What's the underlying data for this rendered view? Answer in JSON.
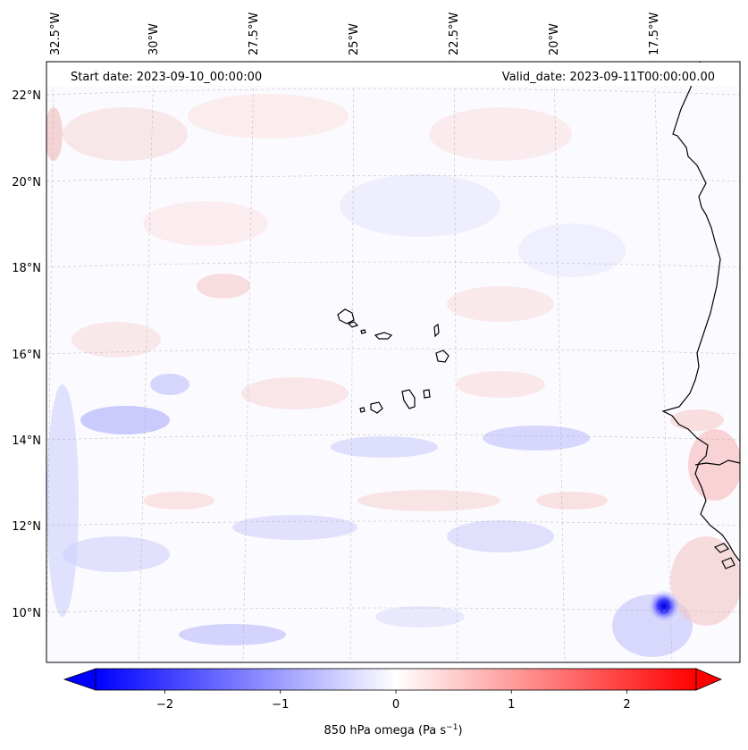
{
  "map": {
    "start_label": "Start date: 2023-09-10_00:00:00",
    "valid_label": "Valid_date: 2023-09-11T00:00:00.00",
    "lon_labels": [
      "32.5°W",
      "30°W",
      "27.5°W",
      "25°W",
      "22.5°W",
      "20°W",
      "17.5°W"
    ],
    "lat_labels": [
      "22°N",
      "20°N",
      "18°N",
      "16°N",
      "14°N",
      "12°N",
      "10°N"
    ],
    "field": "850 hPa omega",
    "colors": {
      "negative": "#0000ff",
      "zero": "#ffffff",
      "positive": "#ff0000",
      "coast": "#000000",
      "grid": "#b0b0b0"
    }
  },
  "colorbar": {
    "label_text": "850 hPa omega (Pa s",
    "label_sup": "−1",
    "label_close": ")",
    "tick_labels": [
      "−2",
      "−1",
      "0",
      "1",
      "2"
    ],
    "range": [
      -2.6,
      2.6
    ],
    "ticks": [
      -2,
      -1,
      0,
      1,
      2
    ],
    "extend": "both"
  }
}
